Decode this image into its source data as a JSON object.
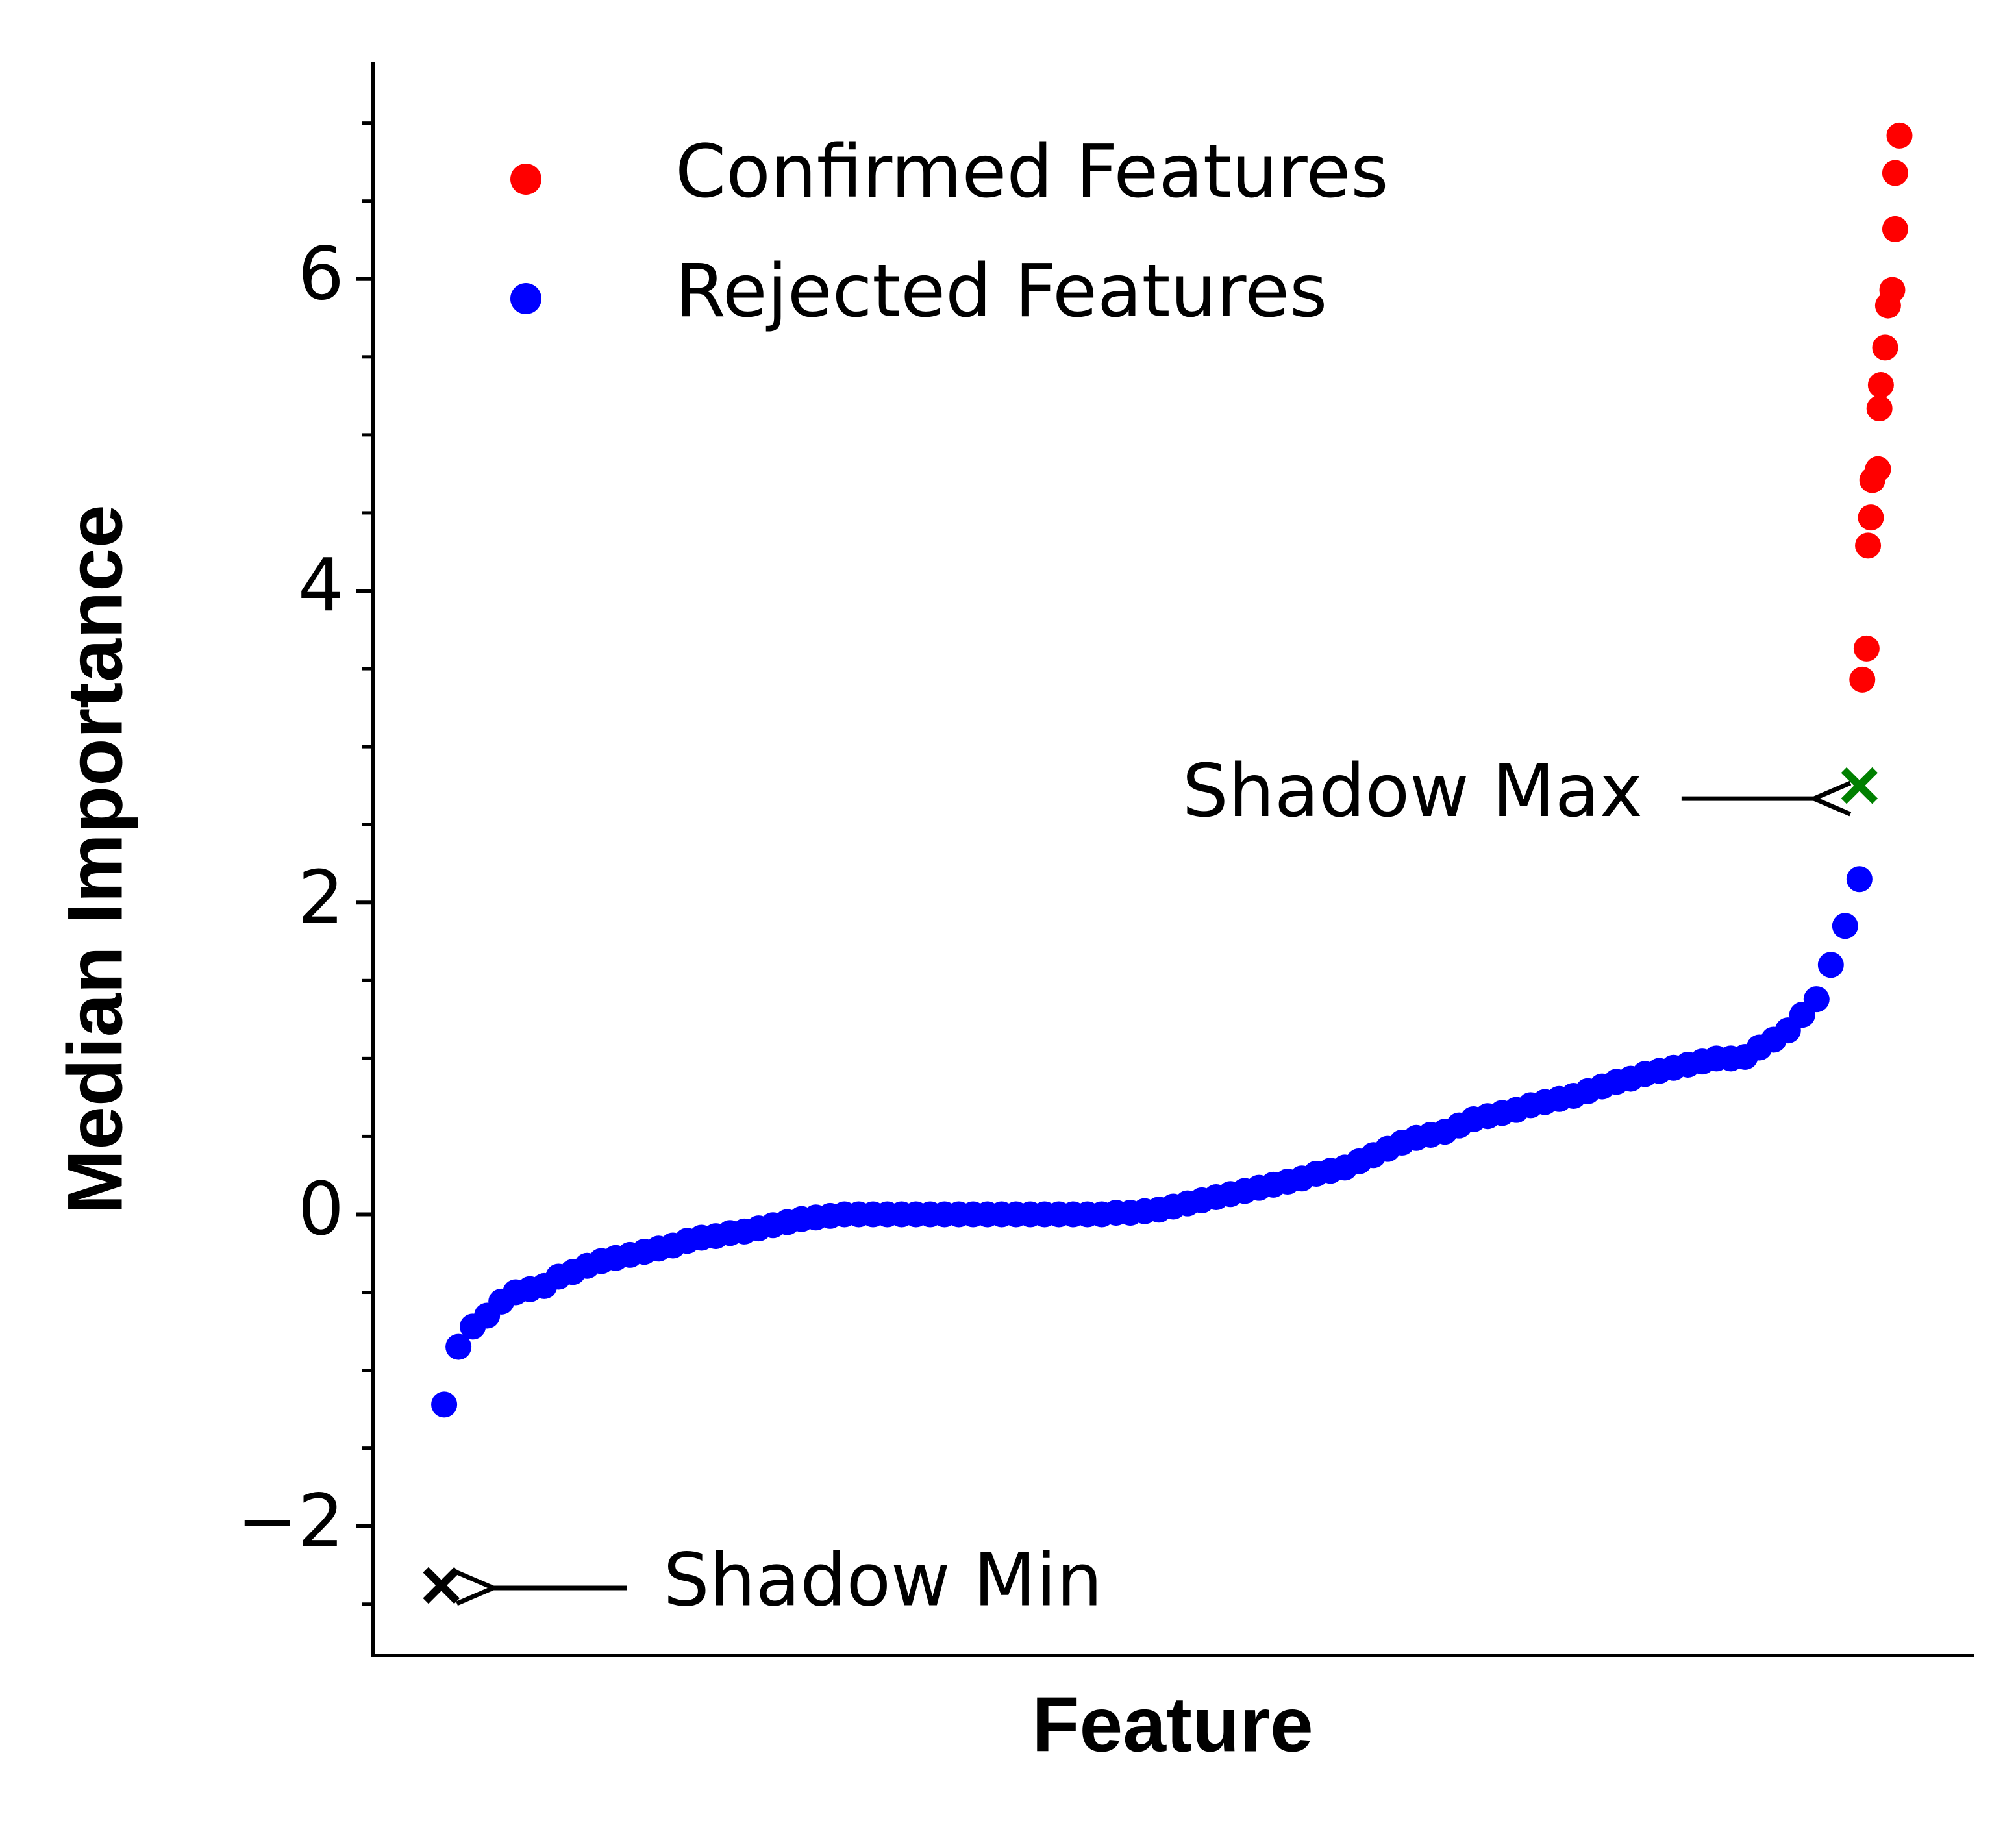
{
  "chart_data": {
    "type": "scatter",
    "xlabel": "Feature",
    "ylabel": "Median Importance",
    "xlim": [
      -5,
      107
    ],
    "ylim": [
      -2.83,
      7.39
    ],
    "yticks": [
      {
        "value": -2,
        "label": "−2"
      },
      0,
      2,
      4,
      6
    ],
    "yminorticks": [
      -2.5,
      -1.5,
      -1,
      -0.5,
      0.5,
      1,
      1.5,
      2.5,
      3,
      3.5,
      4.5,
      5,
      5.5,
      6.5,
      7
    ],
    "legend": "upper left",
    "series": [
      {
        "name": "Confirmed Features",
        "color": "#ff0000",
        "x": [
          99.2,
          99.5,
          99.6,
          99.8,
          99.9,
          100.3,
          100.4,
          100.5,
          100.8,
          101.0,
          101.3,
          101.5,
          101.5,
          101.8
        ],
        "values": [
          3.43,
          3.63,
          4.29,
          4.47,
          4.71,
          4.78,
          5.17,
          5.32,
          5.56,
          5.83,
          5.93,
          6.32,
          6.68,
          6.92
        ]
      },
      {
        "name": "Rejected Features",
        "color": "#0000ff",
        "x": [
          0,
          1,
          2,
          3,
          4,
          5,
          6,
          7,
          8,
          9,
          10,
          11,
          12,
          13,
          14,
          15,
          16,
          17,
          18,
          19,
          20,
          21,
          22,
          23,
          24,
          25,
          26,
          27,
          28,
          29,
          30,
          31,
          32,
          33,
          34,
          35,
          36,
          37,
          38,
          39,
          40,
          41,
          42,
          43,
          44,
          45,
          46,
          47,
          48,
          49,
          50,
          51,
          52,
          53,
          54,
          55,
          56,
          57,
          58,
          59,
          60,
          61,
          62,
          63,
          64,
          65,
          66,
          67,
          68,
          69,
          70,
          71,
          72,
          73,
          74,
          75,
          76,
          77,
          78,
          79,
          80,
          81,
          82,
          83,
          84,
          85,
          86,
          87,
          88,
          89,
          90,
          91,
          92,
          93,
          94,
          95,
          96,
          97,
          98,
          99
        ],
        "values": [
          -1.22,
          -0.85,
          -0.72,
          -0.65,
          -0.56,
          -0.5,
          -0.48,
          -0.46,
          -0.4,
          -0.37,
          -0.33,
          -0.3,
          -0.28,
          -0.26,
          -0.24,
          -0.22,
          -0.2,
          -0.17,
          -0.15,
          -0.14,
          -0.12,
          -0.11,
          -0.09,
          -0.07,
          -0.05,
          -0.03,
          -0.02,
          -0.01,
          0,
          0,
          0,
          0,
          0,
          0,
          0,
          0,
          0,
          0,
          0,
          0,
          0,
          0,
          0,
          0,
          0,
          0,
          0,
          0.01,
          0.01,
          0.02,
          0.03,
          0.05,
          0.07,
          0.09,
          0.11,
          0.13,
          0.15,
          0.17,
          0.19,
          0.21,
          0.23,
          0.26,
          0.28,
          0.3,
          0.34,
          0.38,
          0.42,
          0.46,
          0.49,
          0.51,
          0.53,
          0.57,
          0.61,
          0.63,
          0.65,
          0.67,
          0.7,
          0.72,
          0.74,
          0.76,
          0.79,
          0.82,
          0.85,
          0.87,
          0.9,
          0.92,
          0.94,
          0.96,
          0.98,
          1,
          1,
          1.01,
          1.07,
          1.12,
          1.18,
          1.28,
          1.38,
          1.6,
          1.85,
          2.15
        ]
      }
    ],
    "annotations": [
      {
        "text": "Shadow Max",
        "x": 99,
        "y": 2.75,
        "color": "#008000"
      },
      {
        "text": "Shadow Min",
        "x": -0.2,
        "y": -2.38,
        "color": "#000000"
      }
    ]
  }
}
